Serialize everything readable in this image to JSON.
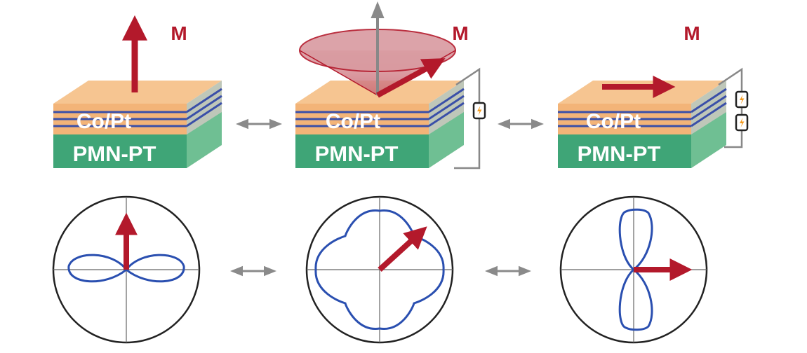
{
  "figure": {
    "magnetization_symbol": "M",
    "panels": [
      {
        "id": "out-of-plane",
        "layer_top_text": "Co/Pt",
        "substrate_text": "PMN-PT",
        "voltage_sources": 0,
        "magnetization_angle_deg": 90,
        "anisotropy": "perpendicular"
      },
      {
        "id": "canted",
        "layer_top_text": "Co/Pt",
        "substrate_text": "PMN-PT",
        "voltage_sources": 1,
        "magnetization_angle_deg": 35,
        "anisotropy": "four-fold"
      },
      {
        "id": "in-plane",
        "layer_top_text": "Co/Pt",
        "substrate_text": "PMN-PT",
        "voltage_sources": 2,
        "magnetization_angle_deg": 0,
        "anisotropy": "in-plane"
      }
    ],
    "transitions": [
      "reversible",
      "reversible"
    ]
  },
  "colors": {
    "arrow_red": "#b3192b",
    "coptz_orange": "#f3b478",
    "stripe_blue": "#3a4fa8",
    "pmn_green": "#3fa577",
    "pmn_green_dark": "#2f8b62",
    "curve_blue": "#2a4fb0",
    "double_arrow_gray": "#888888",
    "cone_fill": "#d99aa0"
  }
}
